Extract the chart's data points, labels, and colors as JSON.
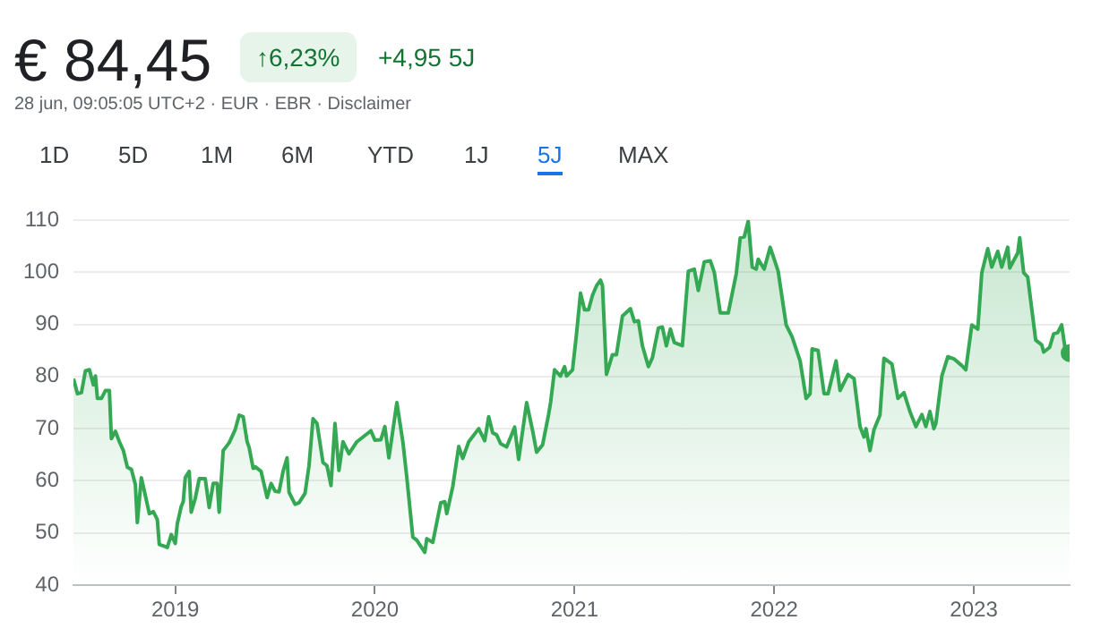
{
  "chart_data": {
    "type": "area",
    "title": "€ 84,45",
    "subtitle": "28 jun, 09:05:05 UTC+2 · EUR · EBR · Disclaimer",
    "annotations": [
      "↑6,23%",
      "+4,95 5J",
      "1D",
      "5D",
      "1M",
      "6M",
      "YTD",
      "1J",
      "5J",
      "MAX"
    ],
    "xlim": [
      2018.49,
      2023.48
    ],
    "xticks": [
      2019,
      2020,
      2021,
      2022,
      2023
    ],
    "ylim": [
      40,
      110
    ],
    "yticks": [
      40,
      50,
      60,
      70,
      80,
      90,
      100,
      110
    ],
    "grid": "y",
    "legend": false,
    "marker": "none",
    "series": [
      {
        "color": "#34a853",
        "x": [
          2018.49,
          2018.51,
          2018.53,
          2018.55,
          2018.57,
          2018.59,
          2018.6,
          2018.61,
          2018.63,
          2018.65,
          2018.67,
          2018.68,
          2018.7,
          2018.72,
          2018.74,
          2018.76,
          2018.78,
          2018.8,
          2018.81,
          2018.83,
          2018.85,
          2018.87,
          2018.89,
          2018.91,
          2018.92,
          2018.95,
          2018.96,
          2018.98,
          2019.0,
          2019.01,
          2019.03,
          2019.04,
          2019.05,
          2019.07,
          2019.08,
          2019.1,
          2019.12,
          2019.15,
          2019.17,
          2019.19,
          2019.21,
          2019.22,
          2019.24,
          2019.27,
          2019.3,
          2019.32,
          2019.34,
          2019.36,
          2019.37,
          2019.39,
          2019.4,
          2019.43,
          2019.46,
          2019.48,
          2019.5,
          2019.52,
          2019.54,
          2019.56,
          2019.57,
          2019.6,
          2019.62,
          2019.65,
          2019.67,
          2019.69,
          2019.71,
          2019.74,
          2019.76,
          2019.78,
          2019.8,
          2019.82,
          2019.84,
          2019.87,
          2019.91,
          2019.94,
          2019.98,
          2020.0,
          2020.03,
          2020.05,
          2020.07,
          2020.11,
          2020.14,
          2020.16,
          2020.19,
          2020.21,
          2020.25,
          2020.26,
          2020.29,
          2020.33,
          2020.35,
          2020.36,
          2020.39,
          2020.42,
          2020.44,
          2020.47,
          2020.52,
          2020.55,
          2020.57,
          2020.59,
          2020.61,
          2020.63,
          2020.66,
          2020.7,
          2020.72,
          2020.76,
          2020.79,
          2020.81,
          2020.84,
          2020.87,
          2020.88,
          2020.9,
          2020.93,
          2020.95,
          2020.96,
          2020.99,
          2021.01,
          2021.03,
          2021.05,
          2021.07,
          2021.09,
          2021.11,
          2021.13,
          2021.14,
          2021.16,
          2021.19,
          2021.21,
          2021.24,
          2021.28,
          2021.3,
          2021.32,
          2021.34,
          2021.37,
          2021.39,
          2021.42,
          2021.44,
          2021.46,
          2021.48,
          2021.5,
          2021.54,
          2021.57,
          2021.6,
          2021.62,
          2021.65,
          2021.68,
          2021.7,
          2021.73,
          2021.77,
          2021.81,
          2021.83,
          2021.85,
          2021.87,
          2021.89,
          2021.91,
          2021.92,
          2021.95,
          2021.98,
          2022.0,
          2022.02,
          2022.06,
          2022.09,
          2022.13,
          2022.16,
          2022.18,
          2022.19,
          2022.22,
          2022.25,
          2022.27,
          2022.31,
          2022.33,
          2022.37,
          2022.4,
          2022.43,
          2022.45,
          2022.46,
          2022.48,
          2022.5,
          2022.53,
          2022.55,
          2022.59,
          2022.62,
          2022.65,
          2022.68,
          2022.71,
          2022.74,
          2022.76,
          2022.78,
          2022.8,
          2022.81,
          2022.84,
          2022.87,
          2022.9,
          2022.94,
          2022.96,
          2022.99,
          2023.02,
          2023.04,
          2023.07,
          2023.09,
          2023.12,
          2023.14,
          2023.17,
          2023.18,
          2023.22,
          2023.23,
          2023.25,
          2023.27,
          2023.31,
          2023.34,
          2023.35,
          2023.38,
          2023.4,
          2023.42,
          2023.44,
          2023.46,
          2023.48
        ],
        "values": [
          79.6,
          76.7,
          76.9,
          81.1,
          81.3,
          78.4,
          80.1,
          75.8,
          75.8,
          77.3,
          77.3,
          68.1,
          69.5,
          67.5,
          65.8,
          62.6,
          62.2,
          59.3,
          52.0,
          60.6,
          57.2,
          53.7,
          54.1,
          52.6,
          47.8,
          47.4,
          47.2,
          49.7,
          48.0,
          51.7,
          55.1,
          56.0,
          60.6,
          61.8,
          54.0,
          56.6,
          60.4,
          60.4,
          54.9,
          59.5,
          59.5,
          54.0,
          65.8,
          67.3,
          69.8,
          72.6,
          72.3,
          67.5,
          66.4,
          62.4,
          62.7,
          61.8,
          56.8,
          59.5,
          58.0,
          57.9,
          61.8,
          64.4,
          57.8,
          55.5,
          55.8,
          57.6,
          62.9,
          71.9,
          71.0,
          63.5,
          62.9,
          59.1,
          71.0,
          62.0,
          67.5,
          65.2,
          67.5,
          68.4,
          69.6,
          67.8,
          67.9,
          70.4,
          64.4,
          75.0,
          67.5,
          60.6,
          49.2,
          48.6,
          46.3,
          48.9,
          48.2,
          55.8,
          56.0,
          53.7,
          58.9,
          66.6,
          64.3,
          67.5,
          70.0,
          67.7,
          72.3,
          69.2,
          68.8,
          67.1,
          66.5,
          70.3,
          64.1,
          75.0,
          69.6,
          65.5,
          66.9,
          72.7,
          75.0,
          81.3,
          80.1,
          81.9,
          80.1,
          81.3,
          88.2,
          96.0,
          92.8,
          92.8,
          95.6,
          97.4,
          98.5,
          97.4,
          80.4,
          84.2,
          84.2,
          91.6,
          93.0,
          90.5,
          90.7,
          85.9,
          81.9,
          83.6,
          89.3,
          89.5,
          85.9,
          89.1,
          86.5,
          85.9,
          100.2,
          100.6,
          96.5,
          102.0,
          102.2,
          100.0,
          92.2,
          92.2,
          99.7,
          106.6,
          106.8,
          109.8,
          101.0,
          100.6,
          102.5,
          100.6,
          104.8,
          102.5,
          100.2,
          89.9,
          87.6,
          83.0,
          75.8,
          76.7,
          85.3,
          85.0,
          76.7,
          76.7,
          83.0,
          77.3,
          80.4,
          79.6,
          70.4,
          68.4,
          70.0,
          65.8,
          69.8,
          72.6,
          83.5,
          82.4,
          75.8,
          76.9,
          73.3,
          70.4,
          72.7,
          70.4,
          73.3,
          70.0,
          71.0,
          80.1,
          83.8,
          83.4,
          82.1,
          81.3,
          89.9,
          89.1,
          99.9,
          104.5,
          101.0,
          104.0,
          101.0,
          104.8,
          100.8,
          103.7,
          106.6,
          99.9,
          99.1,
          87.0,
          86.1,
          84.7,
          85.6,
          88.2,
          88.4,
          89.9,
          84.7,
          84.5
        ]
      },
      {
        "type": "scatter",
        "marker": "circle",
        "color": "#34a853",
        "x": [
          2023.48
        ],
        "values": [
          84.5
        ]
      }
    ]
  }
}
